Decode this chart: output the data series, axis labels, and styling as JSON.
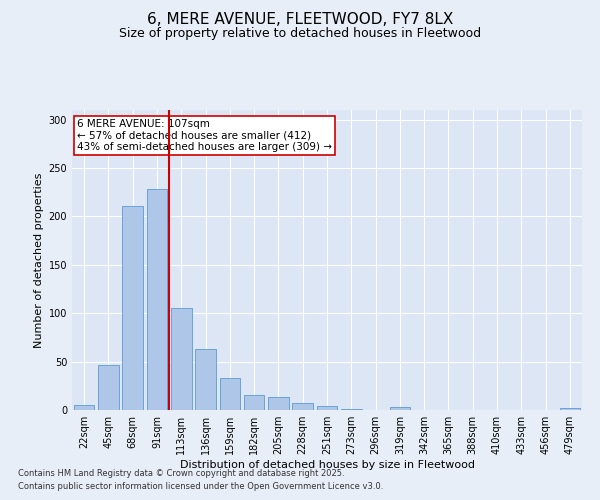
{
  "title": "6, MERE AVENUE, FLEETWOOD, FY7 8LX",
  "subtitle": "Size of property relative to detached houses in Fleetwood",
  "xlabel": "Distribution of detached houses by size in Fleetwood",
  "ylabel": "Number of detached properties",
  "footnote1": "Contains HM Land Registry data © Crown copyright and database right 2025.",
  "footnote2": "Contains public sector information licensed under the Open Government Licence v3.0.",
  "annotation_title": "6 MERE AVENUE: 107sqm",
  "annotation_line1": "← 57% of detached houses are smaller (412)",
  "annotation_line2": "43% of semi-detached houses are larger (309) →",
  "bar_categories": [
    "22sqm",
    "45sqm",
    "68sqm",
    "91sqm",
    "113sqm",
    "136sqm",
    "159sqm",
    "182sqm",
    "205sqm",
    "228sqm",
    "251sqm",
    "273sqm",
    "296sqm",
    "319sqm",
    "342sqm",
    "365sqm",
    "388sqm",
    "410sqm",
    "433sqm",
    "456sqm",
    "479sqm"
  ],
  "bar_values": [
    5,
    47,
    211,
    228,
    105,
    63,
    33,
    16,
    13,
    7,
    4,
    1,
    0,
    3,
    0,
    0,
    0,
    0,
    0,
    0,
    2
  ],
  "bar_color": "#aec6e8",
  "bar_edge_color": "#5b9bd5",
  "background_color": "#e8eef7",
  "plot_bg_color": "#dce6f5",
  "vline_color": "#cc0000",
  "annotation_box_color": "#cc0000",
  "ylim": [
    0,
    310
  ],
  "yticks": [
    0,
    50,
    100,
    150,
    200,
    250,
    300
  ],
  "title_fontsize": 11,
  "subtitle_fontsize": 9,
  "annotation_fontsize": 7.5,
  "axis_label_fontsize": 8,
  "tick_fontsize": 7,
  "footnote_fontsize": 6
}
